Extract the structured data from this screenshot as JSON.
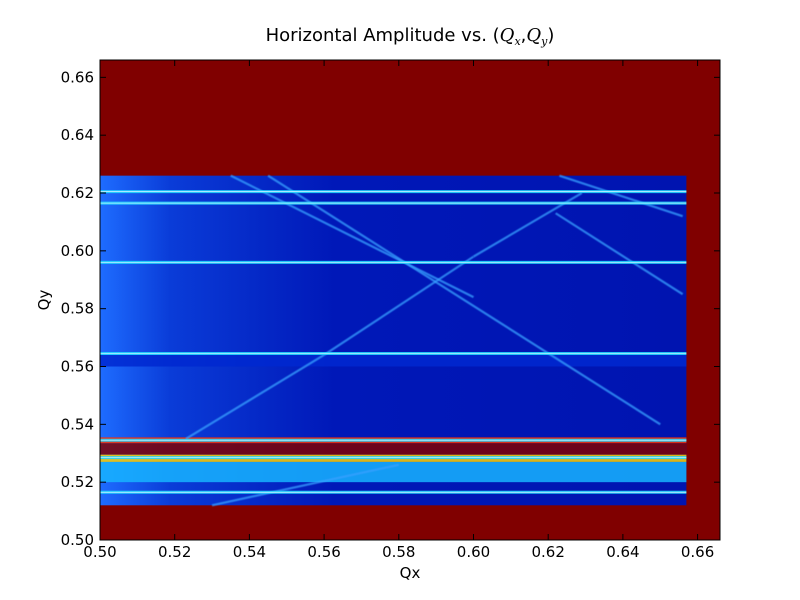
{
  "chart_data": {
    "type": "heatmap",
    "title": {
      "prefix": "Horizontal Amplitude vs. (",
      "qx_base": "Q",
      "qx_sub": "x",
      "sep": ",",
      "qy_base": "Q",
      "qy_sub": "y",
      "suffix": ")"
    },
    "xlabel": "Qx",
    "ylabel": "Qy",
    "xlim": [
      0.5,
      0.666
    ],
    "ylim": [
      0.5,
      0.666
    ],
    "x_ticks": [
      "0.50",
      "0.52",
      "0.54",
      "0.56",
      "0.58",
      "0.60",
      "0.62",
      "0.64",
      "0.66"
    ],
    "y_ticks": [
      "0.50",
      "0.52",
      "0.54",
      "0.56",
      "0.58",
      "0.60",
      "0.62",
      "0.64",
      "0.66"
    ],
    "colormap": "jet",
    "background_value_color": "#800000",
    "grid": false,
    "legend": "none",
    "valid_region": {
      "x_range": [
        0.5,
        0.657
      ],
      "y_range": [
        0.512,
        0.626
      ]
    },
    "horizontal_resonance_lines_qy": [
      0.5165,
      0.5285,
      0.5345,
      0.5645,
      0.596,
      0.6165,
      0.6205
    ],
    "diagonal_resonance_lines": [
      {
        "from": [
          0.523,
          0.535
        ],
        "to": [
          0.56,
          0.564
        ]
      },
      {
        "from": [
          0.56,
          0.564
        ],
        "to": [
          0.6,
          0.598
        ]
      },
      {
        "from": [
          0.6,
          0.598
        ],
        "to": [
          0.629,
          0.62
        ]
      },
      {
        "from": [
          0.535,
          0.626
        ],
        "to": [
          0.6,
          0.584
        ]
      },
      {
        "from": [
          0.545,
          0.626
        ],
        "to": [
          0.65,
          0.54
        ]
      },
      {
        "from": [
          0.622,
          0.613
        ],
        "to": [
          0.656,
          0.585
        ]
      },
      {
        "from": [
          0.53,
          0.512
        ],
        "to": [
          0.58,
          0.526
        ]
      },
      {
        "from": [
          0.623,
          0.626
        ],
        "to": [
          0.656,
          0.612
        ]
      }
    ]
  }
}
